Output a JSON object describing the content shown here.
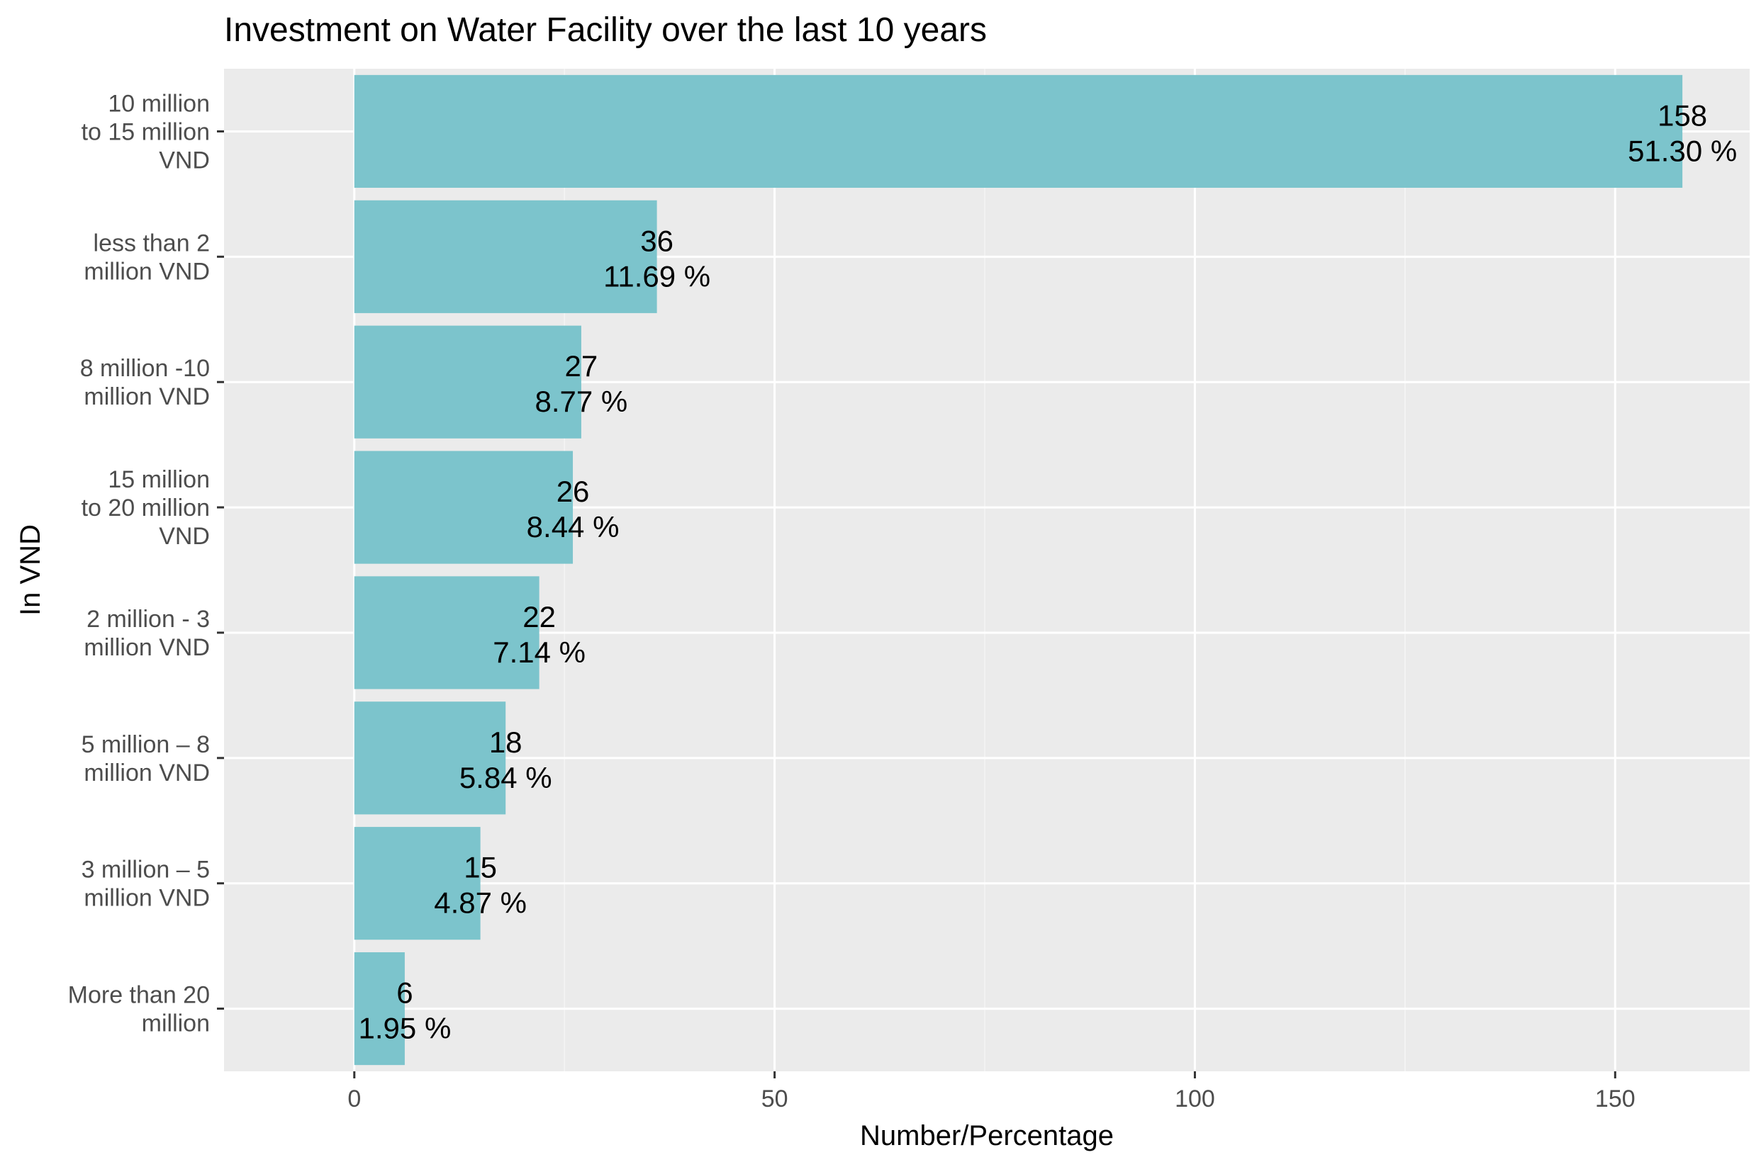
{
  "chart_data": {
    "type": "bar",
    "orientation": "horizontal",
    "title": "Investment on Water Facility over the last 10 years",
    "xlabel": "Number/Percentage",
    "ylabel": "In VND",
    "xlim": [
      -15.5,
      166
    ],
    "xticks": [
      0,
      50,
      100,
      150
    ],
    "grid": true,
    "legend": "none",
    "colors": {
      "bar": "#7cc4cc",
      "panel": "#ebebeb",
      "grid_major": "#ffffff",
      "grid_minor": "#f5f5f5",
      "tick_text": "#4d4d4d",
      "text": "#000000"
    },
    "categories": [
      [
        "10 million",
        "to 15 million",
        "VND"
      ],
      [
        "less than 2",
        "million VND"
      ],
      [
        "8 million -10",
        "million VND"
      ],
      [
        "15 million",
        "to 20 million",
        "VND"
      ],
      [
        "2 million - 3",
        "million VND"
      ],
      [
        "5 million – 8",
        "million VND"
      ],
      [
        "3 million – 5",
        "million VND"
      ],
      [
        "More than 20",
        "million"
      ]
    ],
    "values": [
      158,
      36,
      27,
      26,
      22,
      18,
      15,
      6
    ],
    "percent_labels": [
      "51.30 %",
      "11.69 %",
      "8.77 %",
      "8.44 %",
      "7.14 %",
      "5.84 %",
      "4.87 %",
      "1.95 %"
    ]
  }
}
